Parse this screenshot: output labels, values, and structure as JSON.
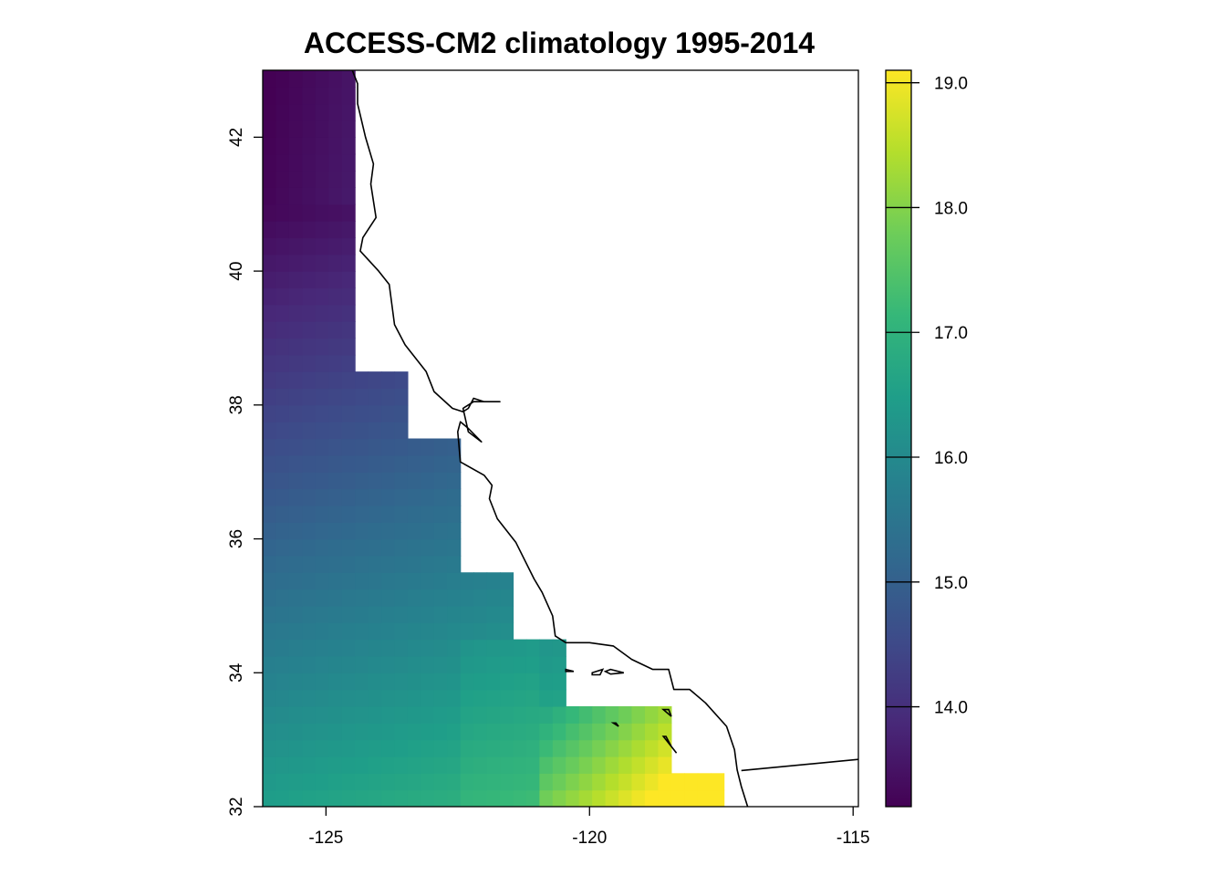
{
  "chart_data": {
    "type": "heatmap",
    "title": "ACCESS-CM2 climatology 1995-2014",
    "xlabel": "",
    "ylabel": "",
    "xlim": [
      -126.2,
      -114.9
    ],
    "ylim": [
      32,
      43
    ],
    "x_ticks": [
      -125,
      -120,
      -115
    ],
    "x_tick_labels": [
      "-125",
      "-120",
      "-115"
    ],
    "y_ticks": [
      32,
      34,
      36,
      38,
      40,
      42
    ],
    "y_tick_labels": [
      "32",
      "34",
      "36",
      "38",
      "40",
      "42"
    ],
    "colorbar": {
      "range": [
        13.2,
        19.1
      ],
      "ticks": [
        14,
        15,
        16,
        17,
        18,
        19
      ],
      "tick_labels": [
        "14.0",
        "15.0",
        "16.0",
        "17.0",
        "18.0",
        "19.0"
      ],
      "palette": [
        "#440154",
        "#482878",
        "#3E4A89",
        "#31688E",
        "#26828E",
        "#1F9E89",
        "#35B779",
        "#6DCD59",
        "#B4DE2C",
        "#FDE725"
      ]
    },
    "grid": {
      "cell_deg": 0.25,
      "x0": -126.2,
      "y0": 32,
      "nx": 40,
      "ny": 44,
      "rows": [
        {
          "ymax": 32.5,
          "xmax": -117.45
        },
        {
          "ymax": 33.5,
          "xmax": -118.45
        },
        {
          "ymax": 34.5,
          "xmax": -120.45
        },
        {
          "ymax": 35.5,
          "xmax": -121.45
        },
        {
          "ymax": 37.5,
          "xmax": -122.45
        },
        {
          "ymax": 38.5,
          "xmax": -123.45
        },
        {
          "ymax": 42.0,
          "xmax": -124.45
        },
        {
          "ymax": 43.0,
          "xmax": -124.45
        }
      ]
    },
    "coastline": [
      [
        -124.5,
        43.0
      ],
      [
        -124.4,
        42.8
      ],
      [
        -124.4,
        42.5
      ],
      [
        -124.25,
        42.0
      ],
      [
        -124.1,
        41.6
      ],
      [
        -124.15,
        41.3
      ],
      [
        -124.05,
        40.8
      ],
      [
        -124.3,
        40.5
      ],
      [
        -124.35,
        40.3
      ],
      [
        -124.0,
        40.0
      ],
      [
        -123.8,
        39.8
      ],
      [
        -123.75,
        39.5
      ],
      [
        -123.7,
        39.2
      ],
      [
        -123.5,
        38.9
      ],
      [
        -123.1,
        38.5
      ],
      [
        -122.95,
        38.2
      ],
      [
        -122.6,
        37.95
      ],
      [
        -122.4,
        37.9
      ],
      [
        -122.3,
        37.95
      ],
      [
        -122.2,
        38.1
      ],
      [
        -122.0,
        38.05
      ],
      [
        -121.7,
        38.05
      ],
      [
        -122.2,
        38.05
      ],
      [
        -122.4,
        37.95
      ],
      [
        -122.3,
        37.6
      ],
      [
        -122.05,
        37.45
      ],
      [
        -122.3,
        37.65
      ],
      [
        -122.45,
        37.75
      ],
      [
        -122.5,
        37.6
      ],
      [
        -122.45,
        37.15
      ],
      [
        -122.0,
        36.95
      ],
      [
        -121.85,
        36.8
      ],
      [
        -121.9,
        36.6
      ],
      [
        -121.75,
        36.3
      ],
      [
        -121.4,
        35.95
      ],
      [
        -121.05,
        35.4
      ],
      [
        -120.9,
        35.2
      ],
      [
        -120.7,
        34.85
      ],
      [
        -120.65,
        34.55
      ],
      [
        -120.45,
        34.45
      ],
      [
        -120.0,
        34.45
      ],
      [
        -119.55,
        34.4
      ],
      [
        -119.2,
        34.2
      ],
      [
        -118.8,
        34.05
      ],
      [
        -118.5,
        34.05
      ],
      [
        -118.4,
        33.75
      ],
      [
        -118.1,
        33.75
      ],
      [
        -117.8,
        33.55
      ],
      [
        -117.4,
        33.2
      ],
      [
        -117.25,
        32.85
      ],
      [
        -117.2,
        32.55
      ],
      [
        -117.12,
        32.3
      ],
      [
        -117.0,
        32.0
      ]
    ],
    "border": [
      [
        -117.12,
        32.54
      ],
      [
        -114.72,
        32.72
      ]
    ],
    "islands": [
      [
        [
          -120.45,
          34.05
        ],
        [
          -120.3,
          34.02
        ],
        [
          -120.45,
          34.02
        ]
      ],
      [
        [
          -119.95,
          34.0
        ],
        [
          -119.75,
          34.05
        ],
        [
          -119.8,
          33.97
        ],
        [
          -119.95,
          33.97
        ]
      ],
      [
        [
          -119.6,
          34.05
        ],
        [
          -119.35,
          34.0
        ],
        [
          -119.6,
          33.98
        ],
        [
          -119.7,
          34.02
        ]
      ],
      [
        [
          -119.55,
          33.25
        ],
        [
          -119.45,
          33.2
        ],
        [
          -119.5,
          33.25
        ]
      ],
      [
        [
          -118.6,
          33.45
        ],
        [
          -118.45,
          33.35
        ],
        [
          -118.5,
          33.45
        ]
      ],
      [
        [
          -118.6,
          33.05
        ],
        [
          -118.35,
          32.8
        ],
        [
          -118.45,
          32.9
        ],
        [
          -118.55,
          33.05
        ]
      ]
    ]
  }
}
